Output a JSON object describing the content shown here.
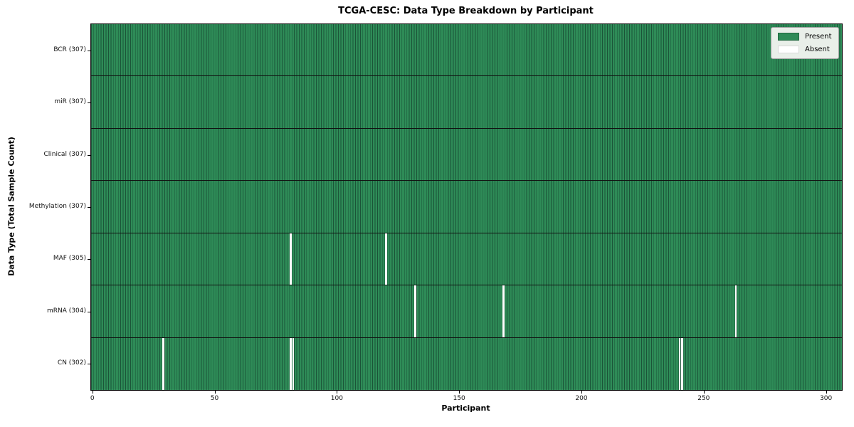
{
  "chart_data": {
    "type": "heatmap",
    "title": "TCGA-CESC: Data Type Breakdown by Participant",
    "xlabel": "Participant",
    "ylabel": "Data Type (Total Sample Count)",
    "n_participants": 307,
    "x_ticks": [
      0,
      50,
      100,
      150,
      200,
      250,
      300
    ],
    "legend_position": "upper right",
    "legend": {
      "present_label": "Present",
      "absent_label": "Absent"
    },
    "rows": [
      {
        "label": "BCR",
        "count": 307,
        "absent_participants": []
      },
      {
        "label": "miR",
        "count": 307,
        "absent_participants": []
      },
      {
        "label": "Clinical",
        "count": 307,
        "absent_participants": []
      },
      {
        "label": "Methylation",
        "count": 307,
        "absent_participants": []
      },
      {
        "label": "MAF",
        "count": 305,
        "absent_participants": [
          81,
          120
        ]
      },
      {
        "label": "mRNA",
        "count": 304,
        "absent_participants": [
          132,
          168,
          263
        ]
      },
      {
        "label": "CN",
        "count": 302,
        "absent_participants": [
          29,
          81,
          82,
          240,
          241
        ]
      }
    ]
  },
  "colors": {
    "present": "#2e8b57",
    "absent": "#ffffff",
    "cell_edge": "#1b5438",
    "row_separator": "#111111",
    "legend_bg": "#e9efe9",
    "legend_border": "#a3a3a3"
  }
}
